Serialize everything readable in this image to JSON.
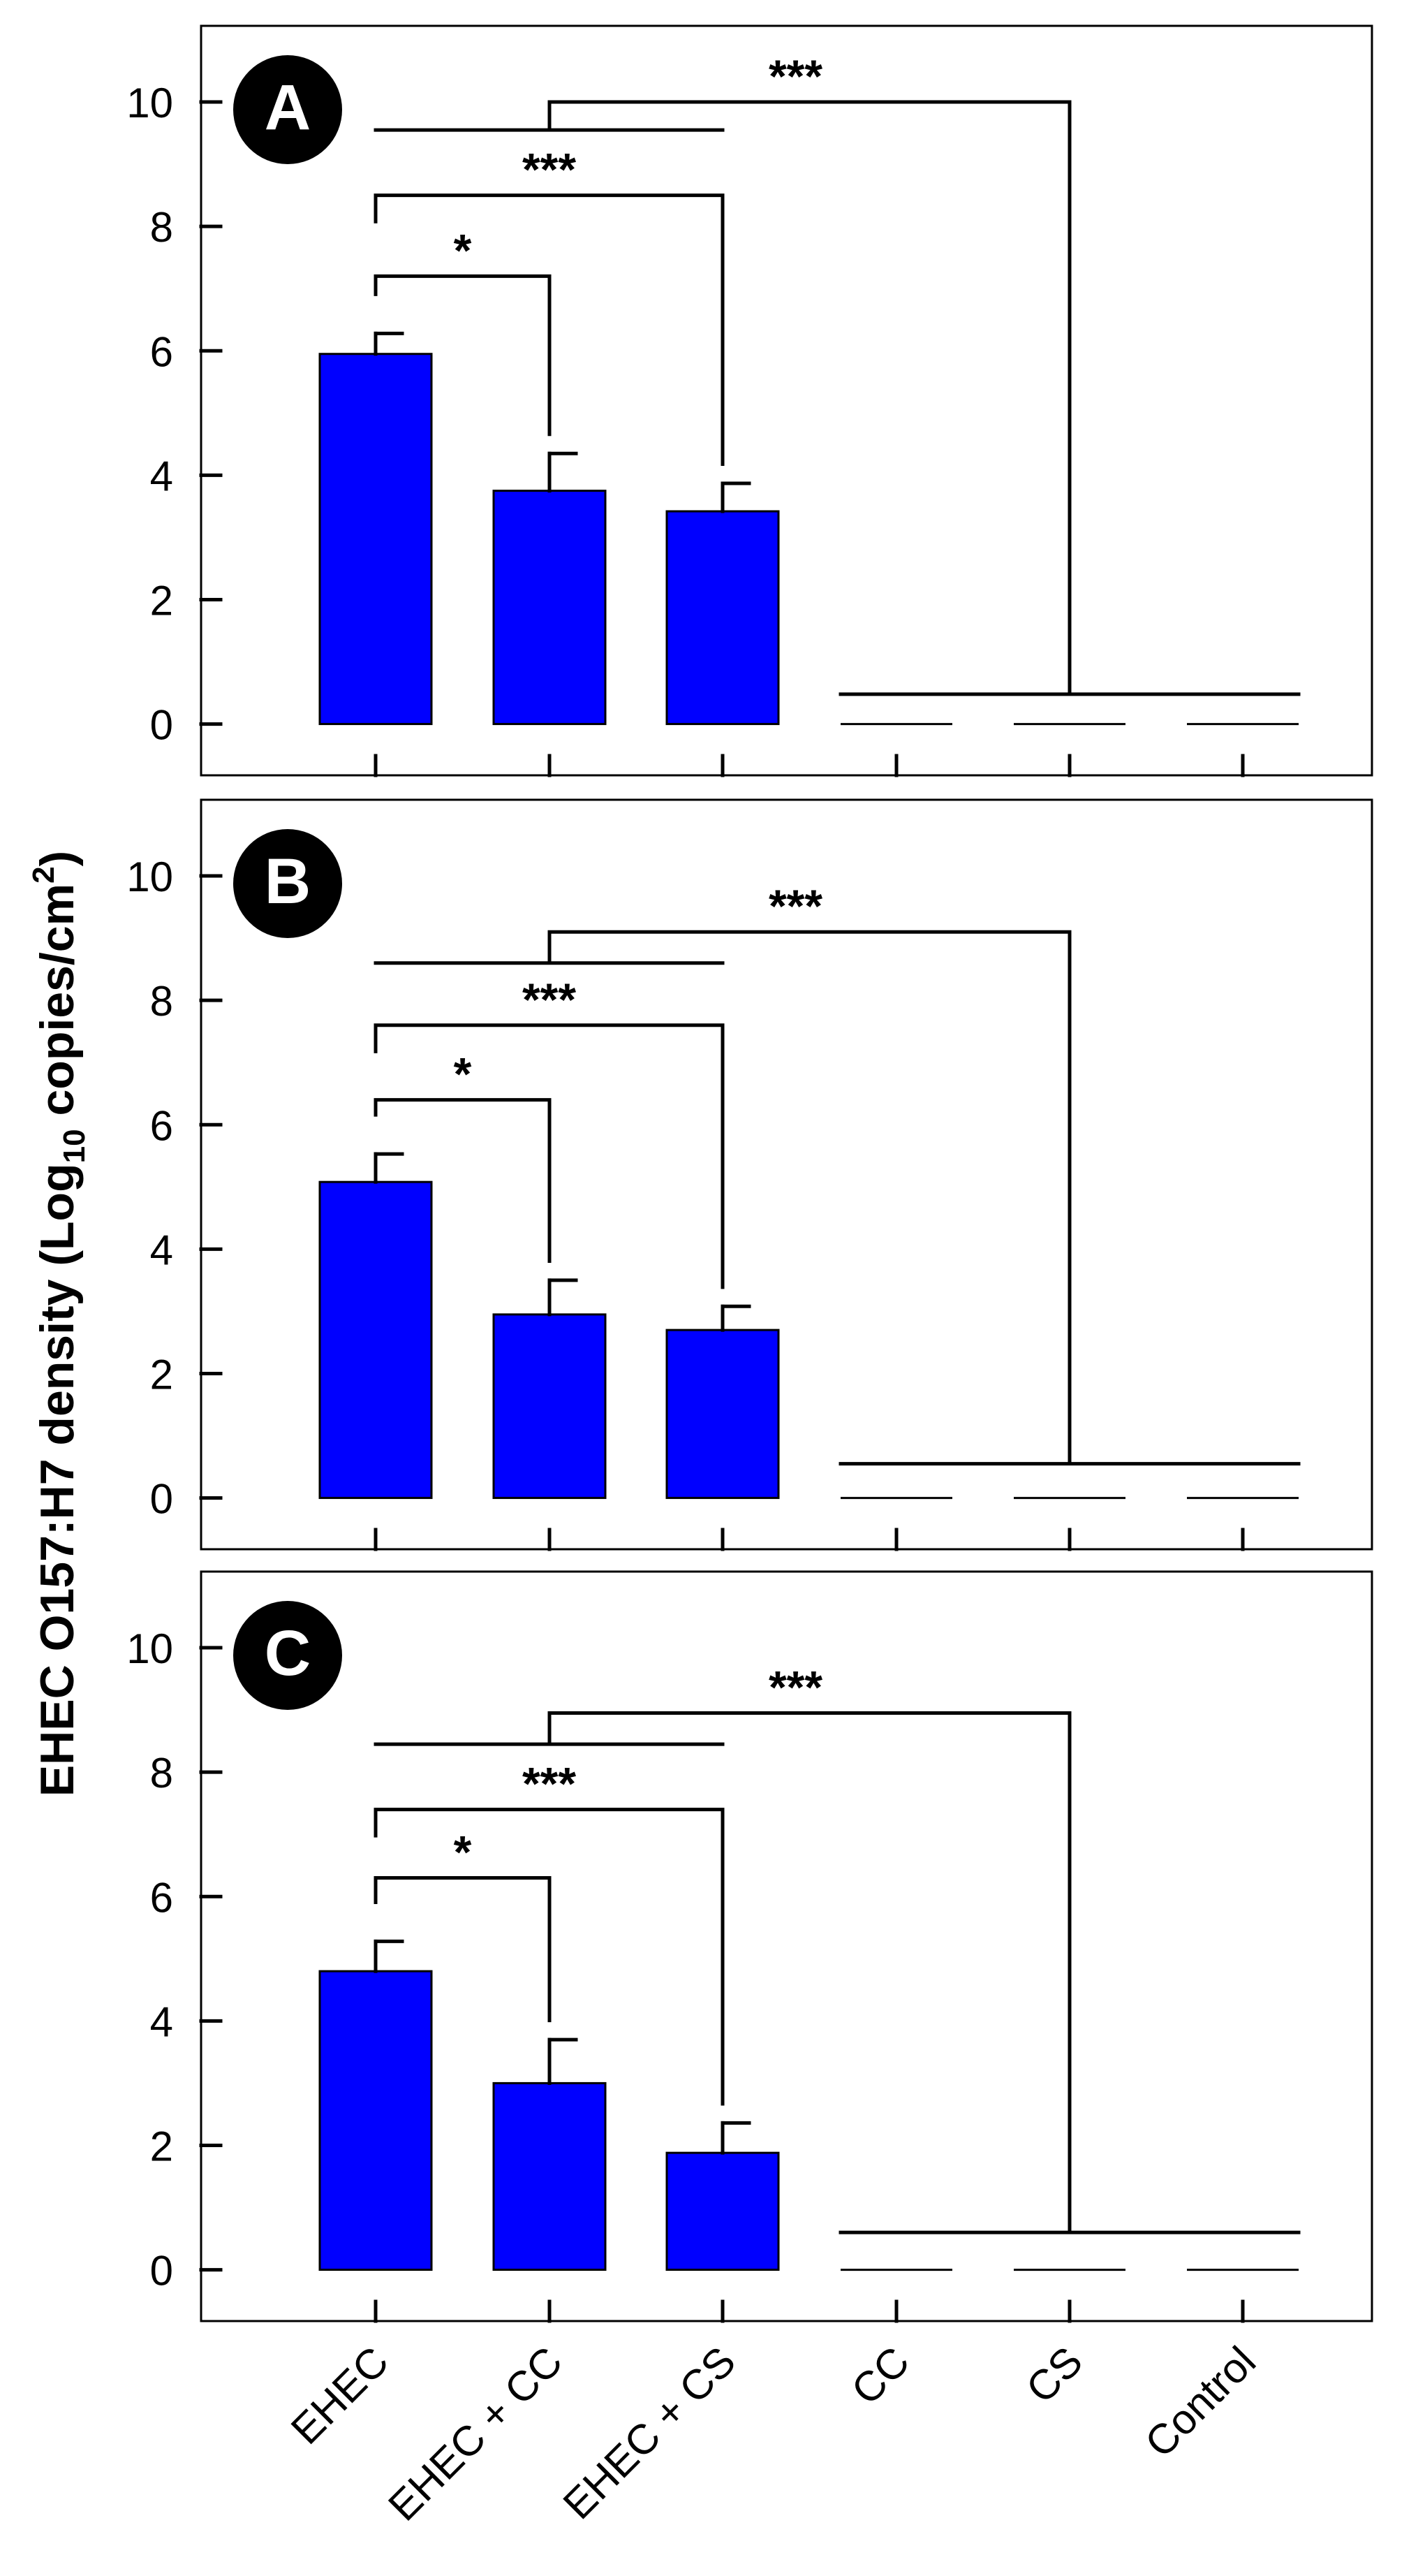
{
  "y_axis_label": {
    "prefix": "EHEC O157:H7 density (Log",
    "sub": "10",
    "middle": " copies/cm",
    "sup": "2",
    "suffix": ")"
  },
  "colors": {
    "bar": "#0000ff",
    "line": "#000000",
    "panel_label_bg": "#000000",
    "panel_label_text": "#ffffff"
  },
  "chart_data": [
    {
      "type": "bar",
      "panel": "A",
      "categories": [
        "EHEC",
        "EHEC + CC",
        "EHEC + CS",
        "CC",
        "CS",
        "Control"
      ],
      "values": [
        5.95,
        3.75,
        3.42,
        0,
        0,
        0
      ],
      "errors": [
        0.33,
        0.6,
        0.45,
        0,
        0,
        0
      ],
      "ylim": [
        -0.6,
        11.0
      ],
      "yticks": [
        "0",
        "2",
        "4",
        "6",
        "8",
        "10"
      ],
      "baseline_bracket_y": 0.48,
      "brackets": [
        {
          "from": "EHEC",
          "to": "EHEC + CC",
          "y": 7.2,
          "label": "*"
        },
        {
          "from": "EHEC",
          "to": "EHEC + CS",
          "y": 8.5,
          "label": "***"
        },
        {
          "group_y": 9.55,
          "to": "CS",
          "y": 10.0,
          "label": "***"
        }
      ]
    },
    {
      "type": "bar",
      "panel": "B",
      "categories": [
        "EHEC",
        "EHEC + CC",
        "EHEC + CS",
        "CC",
        "CS",
        "Control"
      ],
      "values": [
        5.08,
        2.95,
        2.7,
        0,
        0,
        0
      ],
      "errors": [
        0.45,
        0.55,
        0.38,
        0,
        0,
        0
      ],
      "ylim": [
        -0.6,
        11.0
      ],
      "yticks": [
        "0",
        "2",
        "4",
        "6",
        "8",
        "10"
      ],
      "baseline_bracket_y": 0.55,
      "brackets": [
        {
          "from": "EHEC",
          "to": "EHEC + CC",
          "y": 6.4,
          "label": "*"
        },
        {
          "from": "EHEC",
          "to": "EHEC + CS",
          "y": 7.6,
          "label": "***"
        },
        {
          "group_y": 8.6,
          "to": "CS",
          "y": 9.1,
          "label": "***"
        }
      ]
    },
    {
      "type": "bar",
      "panel": "C",
      "categories": [
        "EHEC",
        "EHEC + CC",
        "EHEC + CS",
        "CC",
        "CS",
        "Control"
      ],
      "values": [
        4.8,
        3.0,
        1.88,
        0,
        0,
        0
      ],
      "errors": [
        0.48,
        0.7,
        0.48,
        0,
        0,
        0
      ],
      "ylim": [
        -0.6,
        11.0
      ],
      "yticks": [
        "0",
        "2",
        "4",
        "6",
        "8",
        "10"
      ],
      "baseline_bracket_y": 0.6,
      "brackets": [
        {
          "from": "EHEC",
          "to": "EHEC + CC",
          "y": 6.3,
          "label": "*"
        },
        {
          "from": "EHEC",
          "to": "EHEC + CS",
          "y": 7.4,
          "label": "***"
        },
        {
          "group_y": 8.45,
          "to": "CS",
          "y": 8.95,
          "label": "***"
        }
      ]
    }
  ]
}
